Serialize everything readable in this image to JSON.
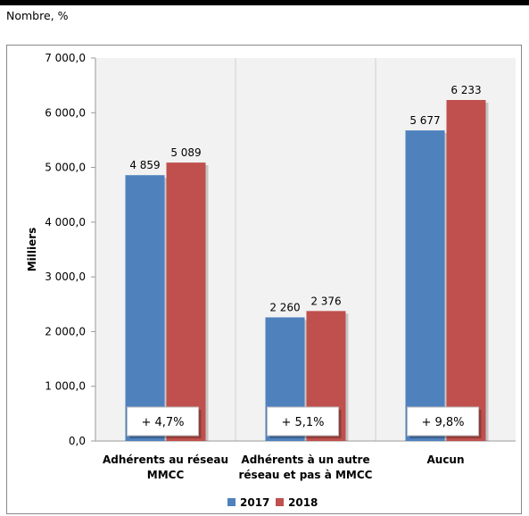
{
  "subtitle": "Nombre, %",
  "chart_data": {
    "type": "bar",
    "categories": [
      [
        "Adhérents au réseau",
        "MMCC"
      ],
      [
        "Adhérents à un autre",
        "réseau et pas à MMCC"
      ],
      [
        "Aucun"
      ]
    ],
    "series": [
      {
        "name": "2017",
        "color": "#4F81BD",
        "values": [
          4859,
          2260,
          5677
        ],
        "labels": [
          "4 859",
          "2 260",
          "5 677"
        ]
      },
      {
        "name": "2018",
        "color": "#C0504D",
        "values": [
          5089,
          2376,
          6233
        ],
        "labels": [
          "5 089",
          "2 376",
          "6 233"
        ]
      }
    ],
    "annotations": [
      "+ 4,7%",
      "+ 5,1%",
      "+ 9,8%"
    ],
    "ylabel": "Milliers",
    "ylim": [
      0,
      7000
    ],
    "yticks": [
      0,
      1000,
      2000,
      3000,
      4000,
      5000,
      6000,
      7000
    ],
    "ytick_labels": [
      "0,0",
      "1 000,0",
      "2 000,0",
      "3 000,0",
      "4 000,0",
      "5 000,0",
      "6 000,0",
      "7 000,0"
    ],
    "legend_position": "bottom",
    "plot_background": "#F2F2F2",
    "grid": "vertical separators"
  }
}
